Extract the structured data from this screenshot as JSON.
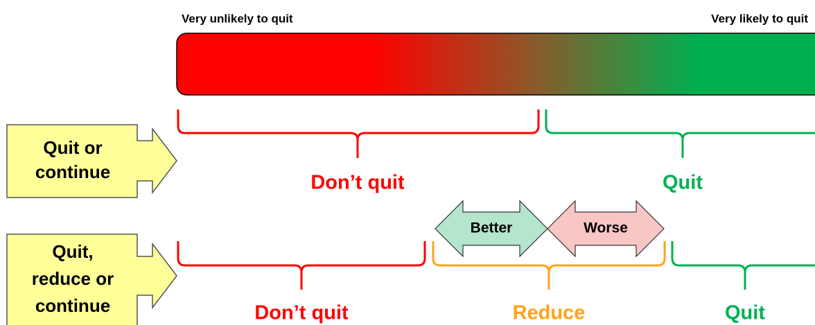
{
  "scale": {
    "left_label": "Very unlikely to quit",
    "right_label": "Very likely to quit"
  },
  "rows": [
    {
      "label_lines": [
        "Quit or",
        "continue"
      ],
      "segments": [
        "Don’t quit",
        "Quit"
      ]
    },
    {
      "label_lines": [
        "Quit,",
        "reduce or",
        "continue"
      ],
      "segments": [
        "Don’t quit",
        "Reduce",
        "Quit"
      ]
    }
  ],
  "comparison": [
    "Better",
    "Worse"
  ]
}
